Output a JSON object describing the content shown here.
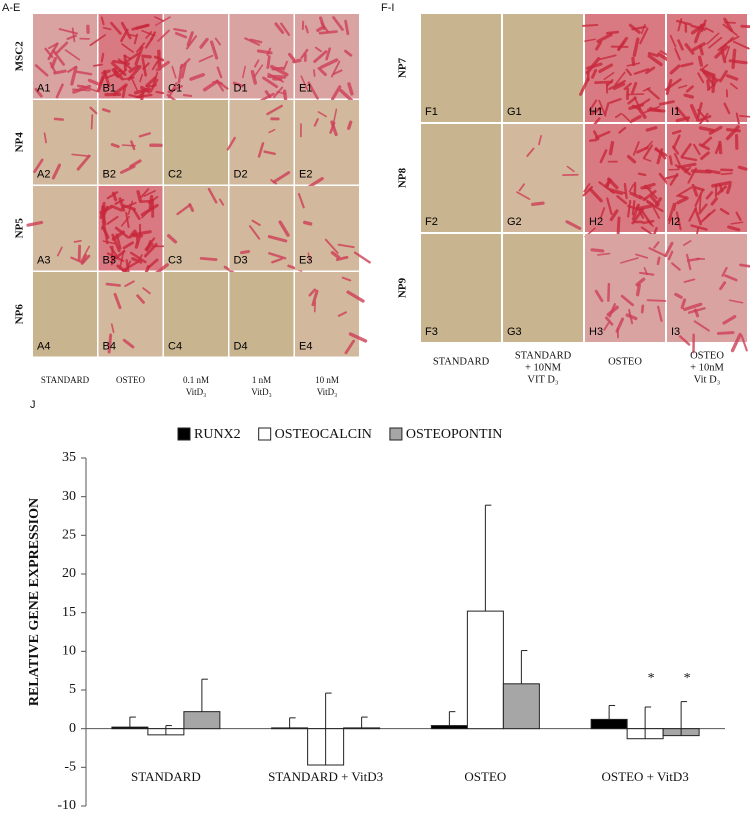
{
  "panel_ae": {
    "label": "A-E",
    "rows": [
      "MSC2",
      "NP4",
      "NP5",
      "NP6"
    ],
    "columns": [
      [
        "STANDARD"
      ],
      [
        "OSTEO"
      ],
      [
        "0.1 nM",
        "VitD₃"
      ],
      [
        "1 nM",
        "VitD₃"
      ],
      [
        "10 nM",
        "VitD₃"
      ]
    ],
    "cells": [
      [
        "A1",
        "B1",
        "C1",
        "D1",
        "E1"
      ],
      [
        "A2",
        "B2",
        "C2",
        "D2",
        "E2"
      ],
      [
        "A3",
        "B3",
        "C3",
        "D3",
        "E3"
      ],
      [
        "A4",
        "B4",
        "C4",
        "D4",
        "E4"
      ]
    ]
  },
  "panel_fi": {
    "label": "F-I",
    "rows": [
      "NP7",
      "NP8",
      "NP9"
    ],
    "columns": [
      [
        "STANDARD"
      ],
      [
        "STANDARD",
        "+ 10NM",
        "VIT D₃"
      ],
      [
        "OSTEO"
      ],
      [
        "OSTEO",
        "+ 10nM",
        "Vit D₃"
      ]
    ],
    "cells": [
      [
        "F1",
        "G1",
        "H1",
        "I1"
      ],
      [
        "F2",
        "G2",
        "H2",
        "I2"
      ],
      [
        "F3",
        "G3",
        "H3",
        "I3"
      ]
    ]
  },
  "chart_data": {
    "type": "bar",
    "panel_label": "J",
    "y_label": "RELATIVE GENE EXPRESSION",
    "categories": [
      "STANDARD",
      "STANDARD + VitD3",
      "OSTEO",
      "OSTEO + VitD3"
    ],
    "series": [
      {
        "name": "RUNX2",
        "color": "#000000",
        "values": [
          0.2,
          0.1,
          0.4,
          1.2
        ],
        "errors": [
          1.3,
          1.3,
          1.8,
          1.8
        ]
      },
      {
        "name": "OSTEOCALCIN",
        "color": "#ffffff",
        "values": [
          -0.8,
          -4.7,
          15.2,
          -1.3
        ],
        "errors": [
          1.2,
          9.3,
          13.7,
          4.1
        ]
      },
      {
        "name": "OSTEOPONTIN",
        "color": "#a6a6a6",
        "values": [
          2.2,
          0.1,
          5.8,
          -0.9
        ],
        "errors": [
          4.2,
          1.4,
          4.3,
          4.4
        ]
      }
    ],
    "annotations": [
      "*",
      "*"
    ],
    "ylim": [
      -10,
      35
    ],
    "yticks": [
      -10,
      -5,
      0,
      5,
      10,
      15,
      20,
      25,
      30,
      35
    ],
    "grid": false
  }
}
